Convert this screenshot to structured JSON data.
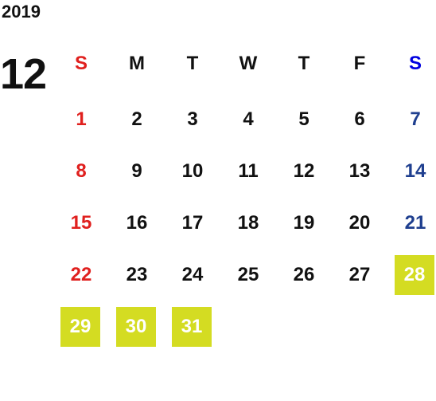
{
  "year": "2019",
  "month": "12",
  "weekdays": [
    "S",
    "M",
    "T",
    "W",
    "T",
    "F",
    "S"
  ],
  "weeks": [
    [
      1,
      2,
      3,
      4,
      5,
      6,
      7
    ],
    [
      8,
      9,
      10,
      11,
      12,
      13,
      14
    ],
    [
      15,
      16,
      17,
      18,
      19,
      20,
      21
    ],
    [
      22,
      23,
      24,
      25,
      26,
      27,
      28
    ],
    [
      29,
      30,
      31
    ]
  ],
  "highlighted": [
    28,
    29,
    30,
    31
  ],
  "colors": {
    "sunday": "#e0201e",
    "saturday_header": "#0000e0",
    "saturday": "#1f3f8f",
    "highlight": "#d4dc22",
    "highlight_text": "#ffffff"
  }
}
